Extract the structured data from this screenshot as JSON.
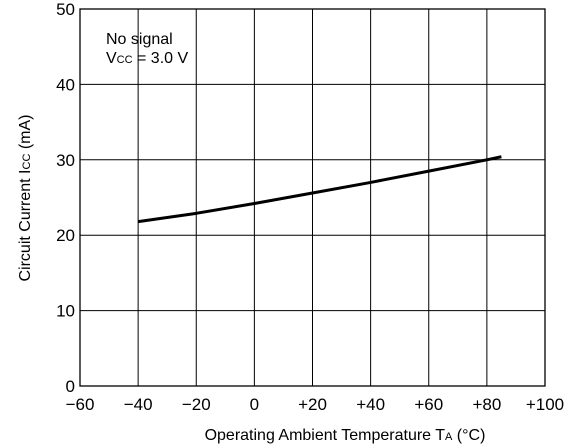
{
  "chart_data": {
    "type": "line",
    "xlabel": {
      "main": "Operating Ambient Temperature  T",
      "sub": "A",
      "unit": " (°C)"
    },
    "ylabel": {
      "main": "Circuit Current  I",
      "sub": "CC",
      "unit": " (mA)"
    },
    "xlim": [
      -60,
      100
    ],
    "ylim": [
      0,
      50
    ],
    "x_ticks": [
      -60,
      -40,
      -20,
      0,
      20,
      40,
      60,
      80,
      100
    ],
    "x_tick_labels": [
      "−60",
      "−40",
      "−20",
      "0",
      "+20",
      "+40",
      "+60",
      "+80",
      "+100"
    ],
    "y_ticks": [
      0,
      10,
      20,
      30,
      40,
      50
    ],
    "y_tick_labels": [
      "0",
      "10",
      "20",
      "30",
      "40",
      "50"
    ],
    "grid": true,
    "annotation": {
      "line1": "No signal",
      "line2_main": "V",
      "line2_sub": "CC",
      "line2_rest": " = 3.0 V"
    },
    "series": [
      {
        "x": [
          -40,
          -20,
          0,
          20,
          40,
          60,
          80,
          85
        ],
        "y": [
          21.8,
          22.9,
          24.2,
          25.6,
          27.0,
          28.5,
          30.0,
          30.4
        ],
        "color": "#000000"
      }
    ]
  }
}
